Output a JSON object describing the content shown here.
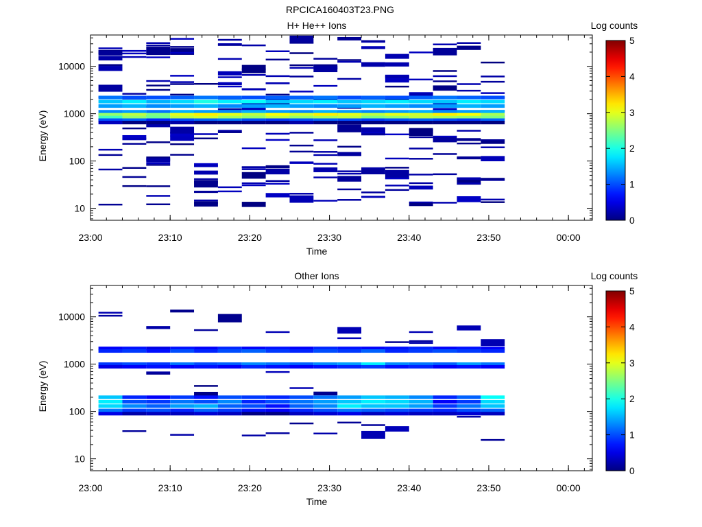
{
  "figure": {
    "title": "RPCICA160403T23.PNG"
  },
  "chart_data": [
    {
      "type": "heatmap",
      "title": "H+ He++ Ions",
      "xlabel": "Time",
      "ylabel": "Energy (eV)",
      "x_ticks": [
        "23:00",
        "23:10",
        "23:20",
        "23:30",
        "23:40",
        "23:50",
        "00:00"
      ],
      "y_ticks": [
        "10",
        "100",
        "1000",
        "10000"
      ],
      "y_scale": "log",
      "colorbar": {
        "label": "Log counts",
        "ticks": [
          "0",
          "1",
          "2",
          "3",
          "4",
          "5"
        ],
        "range": [
          0,
          5
        ]
      },
      "time_bins": [
        "23:01",
        "23:04",
        "23:07",
        "23:10",
        "23:13",
        "23:16",
        "23:19",
        "23:22",
        "23:25",
        "23:28",
        "23:31",
        "23:34",
        "23:37",
        "23:40",
        "23:43",
        "23:46",
        "23:49"
      ],
      "bands": [
        {
          "energy": 1800,
          "values": [
            1.6,
            1.8,
            1.5,
            1.7,
            2.0,
            1.8,
            1.9,
            1.6,
            1.7,
            1.8,
            1.6,
            1.7,
            1.8,
            1.7,
            1.6,
            1.8,
            1.7
          ]
        },
        {
          "energy": 2200,
          "values": [
            1.2,
            1.0,
            1.0,
            1.1,
            1.2,
            1.1,
            1.0,
            1.1,
            1.1,
            1.2,
            1.0,
            1.1,
            1.0,
            1.1,
            1.2,
            1.1,
            1.0
          ]
        },
        {
          "energy": 1450,
          "values": [
            1.4,
            1.5,
            1.3,
            1.4,
            1.5,
            1.3,
            1.4,
            1.5,
            1.4,
            1.3,
            1.4,
            1.5,
            1.4,
            1.3,
            1.4,
            1.5,
            1.4
          ]
        },
        {
          "energy": 1100,
          "values": [
            1.3,
            1.4,
            1.2,
            1.5,
            1.4,
            1.3,
            1.5,
            1.4,
            1.3,
            1.5,
            1.4,
            1.3,
            1.4,
            1.5,
            1.3,
            1.4,
            1.5
          ]
        },
        {
          "energy": 950,
          "values": [
            2.6,
            2.8,
            2.5,
            3.0,
            3.2,
            3.0,
            2.8,
            3.1,
            2.9,
            3.2,
            3.0,
            2.8,
            3.0,
            2.9,
            3.2,
            3.1,
            2.7
          ]
        },
        {
          "energy": 830,
          "values": [
            2.2,
            2.6,
            2.4,
            2.8,
            2.9,
            2.7,
            2.6,
            2.8,
            2.6,
            2.7,
            2.8,
            2.5,
            2.6,
            2.8,
            2.7,
            2.6,
            2.5
          ]
        },
        {
          "energy": 730,
          "values": [
            1.0,
            1.1,
            0.8,
            1.0,
            1.1,
            1.2,
            1.0,
            0.9,
            1.0,
            1.1,
            1.0,
            0.9,
            1.0,
            1.1,
            1.0,
            0.9,
            1.1
          ]
        },
        {
          "energy": 650,
          "values": [
            0.3,
            0.0,
            0.0,
            0.2,
            0.0,
            0.0,
            0.0,
            0.0,
            0.2,
            0.0,
            0.0,
            0.0,
            0.0,
            0.0,
            0.0,
            0.0,
            0.0
          ]
        }
      ],
      "sparse_max": 0.35,
      "sparse_range": [
        12,
        40000
      ]
    },
    {
      "type": "heatmap",
      "title": "Other Ions",
      "xlabel": "Time",
      "ylabel": "Energy (eV)",
      "x_ticks": [
        "23:00",
        "23:10",
        "23:20",
        "23:30",
        "23:40",
        "23:50",
        "00:00"
      ],
      "y_ticks": [
        "10",
        "100",
        "1000",
        "10000"
      ],
      "y_scale": "log",
      "colorbar": {
        "label": "Log counts",
        "ticks": [
          "0",
          "1",
          "2",
          "3",
          "4",
          "5"
        ],
        "range": [
          0,
          5
        ]
      },
      "time_bins": [
        "23:01",
        "23:04",
        "23:07",
        "23:10",
        "23:13",
        "23:16",
        "23:19",
        "23:22",
        "23:25",
        "23:28",
        "23:31",
        "23:34",
        "23:37",
        "23:40",
        "23:43",
        "23:46",
        "23:49"
      ],
      "bands": [
        {
          "energy": 2150,
          "values": [
            0.6,
            0.7,
            0.5,
            0.7,
            0.6,
            0.8,
            0.6,
            0.7,
            0.6,
            0.8,
            0.7,
            0.6,
            0.7,
            0.8,
            0.6,
            0.7,
            0.6
          ]
        },
        {
          "energy": 1900,
          "values": [
            0.8,
            0.9,
            0.7,
            1.0,
            0.8,
            1.0,
            1.1,
            0.9,
            0.8,
            1.0,
            0.9,
            1.1,
            0.8,
            0.9,
            1.0,
            0.9,
            0.8
          ]
        },
        {
          "energy": 1000,
          "values": [
            0.9,
            1.0,
            0.9,
            1.2,
            1.0,
            1.1,
            1.3,
            1.2,
            1.1,
            1.3,
            1.4,
            1.8,
            1.3,
            1.2,
            1.1,
            1.4,
            1.2
          ]
        },
        {
          "energy": 880,
          "values": [
            0.5,
            0.6,
            0.7,
            0.6,
            0.7,
            0.6,
            0.8,
            0.7,
            0.6,
            0.7,
            0.8,
            0.9,
            0.7,
            0.8,
            0.6,
            0.7,
            0.6
          ]
        },
        {
          "energy": 200,
          "values": [
            1.6,
            0.8,
            0.6,
            0.9,
            0.7,
            1.0,
            0.9,
            0.8,
            1.0,
            1.2,
            1.4,
            1.6,
            1.5,
            1.3,
            0.8,
            1.1,
            1.9
          ]
        },
        {
          "energy": 160,
          "values": [
            1.8,
            1.0,
            0.9,
            1.2,
            1.0,
            1.3,
            0.8,
            1.0,
            1.2,
            1.4,
            1.6,
            1.8,
            1.7,
            1.5,
            0.6,
            0.9,
            1.7
          ]
        },
        {
          "energy": 130,
          "values": [
            1.7,
            1.3,
            1.1,
            1.4,
            1.5,
            1.1,
            1.0,
            0.7,
            1.1,
            1.3,
            1.8,
            1.6,
            1.6,
            1.4,
            0.9,
            1.2,
            1.6
          ]
        },
        {
          "energy": 105,
          "values": [
            1.2,
            0.9,
            1.0,
            0.8,
            1.1,
            0.9,
            0.7,
            0.6,
            0.8,
            1.0,
            1.2,
            1.1,
            1.0,
            0.9,
            0.8,
            1.0,
            1.1
          ]
        },
        {
          "energy": 90,
          "values": [
            0.5,
            0.2,
            0.3,
            0.3,
            0.4,
            0.3,
            0.0,
            0.0,
            0.3,
            0.4,
            0.5,
            0.3,
            0.4,
            0.3,
            0.3,
            0.4,
            0.3
          ]
        }
      ],
      "sparse_max": 0.3,
      "sparse_range": [
        25,
        15000
      ]
    }
  ]
}
